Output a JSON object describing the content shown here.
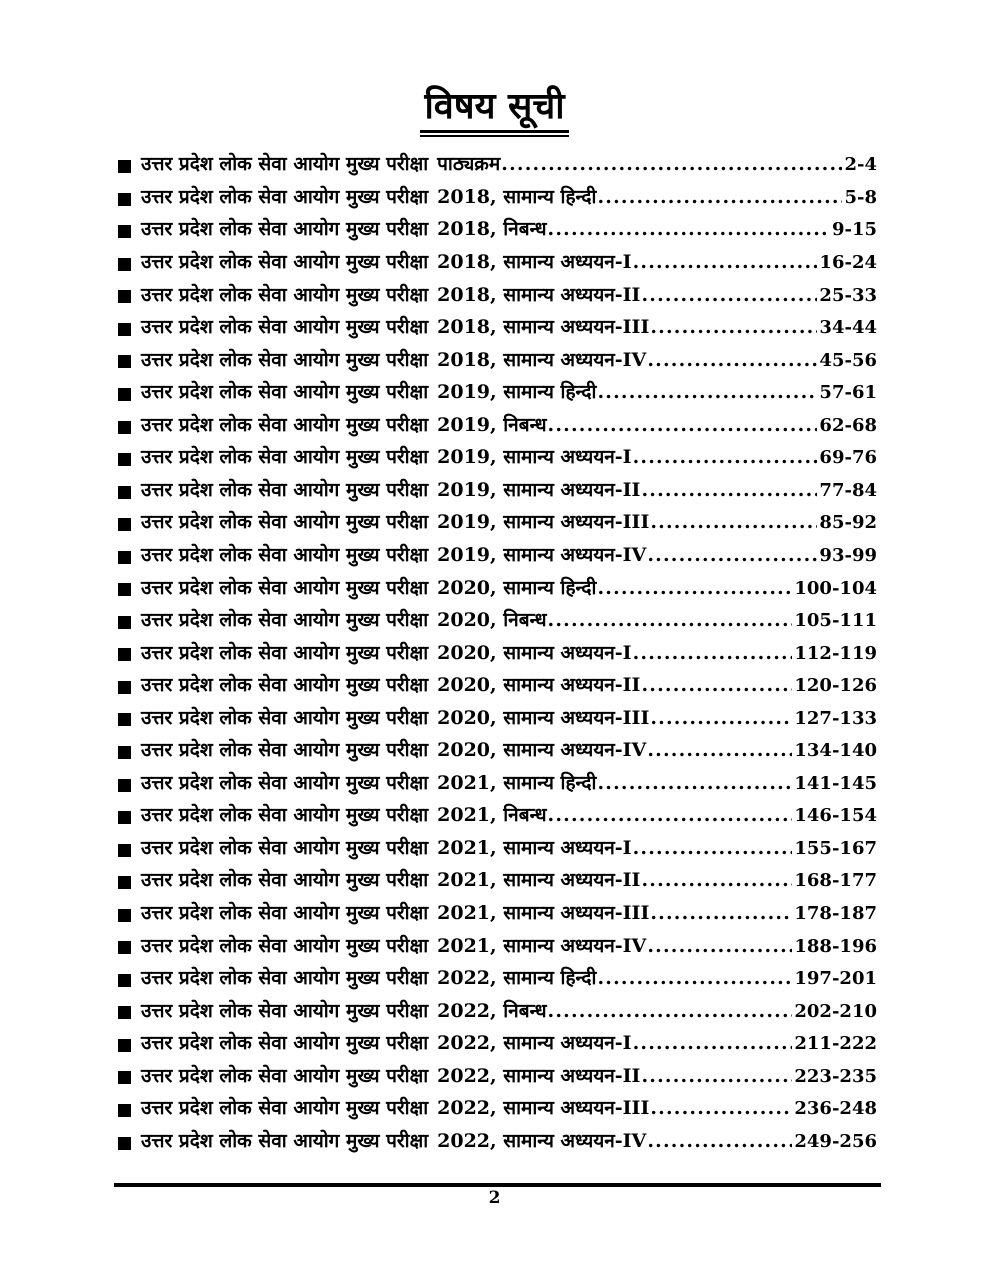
{
  "page": {
    "title": "विषय सूची",
    "footer_page_number": "2"
  },
  "toc": {
    "common_prefix": "उत्तर प्रदेश लोक सेवा आयोग मुख्य परीक्षा",
    "items": [
      {
        "part": "पाठ्यक्रम",
        "pages": "2-4"
      },
      {
        "part": "2018, सामान्य हिन्दी",
        "pages": "5-8"
      },
      {
        "part": "2018, निबन्ध",
        "pages": "9-15"
      },
      {
        "part": "2018, सामान्य अध्ययन-I",
        "pages": "16-24"
      },
      {
        "part": "2018, सामान्य अध्ययन-II",
        "pages": "25-33"
      },
      {
        "part": "2018, सामान्य अध्ययन-III",
        "pages": "34-44"
      },
      {
        "part": "2018, सामान्य अध्ययन-IV",
        "pages": "45-56"
      },
      {
        "part": "2019, सामान्य हिन्दी",
        "pages": "57-61"
      },
      {
        "part": "2019, निबन्ध",
        "pages": "62-68"
      },
      {
        "part": "2019, सामान्य अध्ययन-I",
        "pages": "69-76"
      },
      {
        "part": "2019, सामान्य अध्ययन-II",
        "pages": "77-84"
      },
      {
        "part": "2019, सामान्य अध्ययन-III",
        "pages": "85-92"
      },
      {
        "part": "2019, सामान्य अध्ययन-IV",
        "pages": "93-99"
      },
      {
        "part": "2020, सामान्य हिन्दी",
        "pages": "100-104"
      },
      {
        "part": "2020, निबन्ध",
        "pages": "105-111"
      },
      {
        "part": "2020, सामान्य अध्ययन-I",
        "pages": "112-119"
      },
      {
        "part": "2020, सामान्य अध्ययन-II",
        "pages": "120-126"
      },
      {
        "part": "2020, सामान्य अध्ययन-III",
        "pages": "127-133"
      },
      {
        "part": "2020, सामान्य अध्ययन-IV",
        "pages": "134-140"
      },
      {
        "part": "2021, सामान्य हिन्दी",
        "pages": "141-145"
      },
      {
        "part": "2021, निबन्ध",
        "pages": "146-154"
      },
      {
        "part": "2021, सामान्य अध्ययन-I",
        "pages": "155-167"
      },
      {
        "part": "2021, सामान्य अध्ययन-II",
        "pages": "168-177"
      },
      {
        "part": "2021, सामान्य अध्ययन-III",
        "pages": "178-187"
      },
      {
        "part": "2021, सामान्य अध्ययन-IV",
        "pages": "188-196"
      },
      {
        "part": "2022, सामान्य हिन्दी",
        "pages": "197-201"
      },
      {
        "part": "2022, निबन्ध",
        "pages": "202-210"
      },
      {
        "part": "2022, सामान्य अध्ययन-I",
        "pages": "211-222"
      },
      {
        "part": "2022, सामान्य अध्ययन-II",
        "pages": "223-235"
      },
      {
        "part": "2022, सामान्य अध्ययन-III",
        "pages": "236-248"
      },
      {
        "part": "2022, सामान्य अध्ययन-IV",
        "pages": "249-256"
      }
    ]
  }
}
